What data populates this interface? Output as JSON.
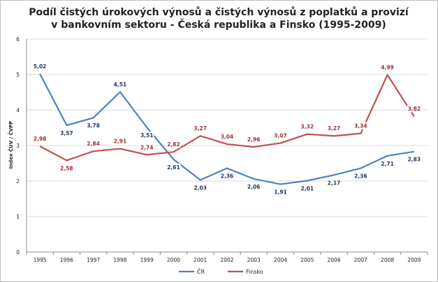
{
  "chart_data": {
    "type": "line",
    "title_lines": [
      "Podíl čistých úrokových výnosů a čistých výnosů z poplatků a provizí",
      "v bankovním sektoru - Česká republika a Finsko (1995-2009)"
    ],
    "ylabel": "Index ČÚV / ČVPP",
    "xlabel": "",
    "ylim": [
      0,
      6
    ],
    "yticks": [
      "0",
      "1",
      "2",
      "3",
      "4",
      "5",
      "6"
    ],
    "categories": [
      "1995",
      "1996",
      "1997",
      "1998",
      "1999",
      "2000",
      "2001",
      "2002",
      "2003",
      "2004",
      "2005",
      "2006",
      "2007",
      "2008",
      "2009"
    ],
    "grid": "horizontal",
    "legend_position": "bottom",
    "series": [
      {
        "name": "ČR",
        "color": "#4f81bd",
        "values": [
          5.02,
          3.57,
          3.78,
          4.51,
          3.51,
          2.61,
          2.03,
          2.36,
          2.06,
          1.91,
          2.01,
          2.17,
          2.36,
          2.71,
          2.83
        ],
        "labels": [
          "5,02",
          "3,57",
          "3,78",
          "4,51",
          "3,51",
          "2,61",
          "2,03",
          "2,36",
          "2,06",
          "1,91",
          "2,01",
          "2,17",
          "2,36",
          "2,71",
          "2,83"
        ]
      },
      {
        "name": "Finsko",
        "color": "#c0504d",
        "values": [
          2.98,
          2.58,
          2.84,
          2.91,
          2.74,
          2.82,
          3.27,
          3.04,
          2.96,
          3.07,
          3.32,
          3.27,
          3.34,
          4.99,
          3.82
        ],
        "labels": [
          "2,98",
          "2,58",
          "2,84",
          "2,91",
          "2,74",
          "2,82",
          "3,27",
          "3,04",
          "2,96",
          "3,07",
          "3,32",
          "3,27",
          "3,34",
          "4,99",
          "3,82"
        ]
      }
    ]
  }
}
